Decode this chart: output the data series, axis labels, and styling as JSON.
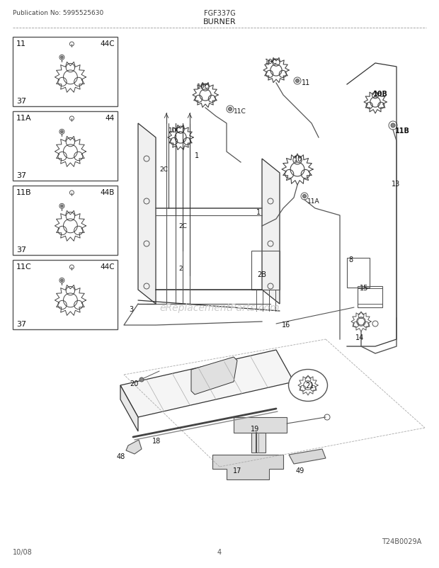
{
  "title": "BURNER",
  "model": "FGF337G",
  "pub_no": "Publication No: 5995525630",
  "date": "10/08",
  "page": "4",
  "diagram_id": "T24B0029A",
  "watermark": "eReplacementParts.com",
  "bg_color": "#ffffff",
  "lc": "#333333",
  "fig_width": 6.2,
  "fig_height": 8.03,
  "dpi": 100
}
